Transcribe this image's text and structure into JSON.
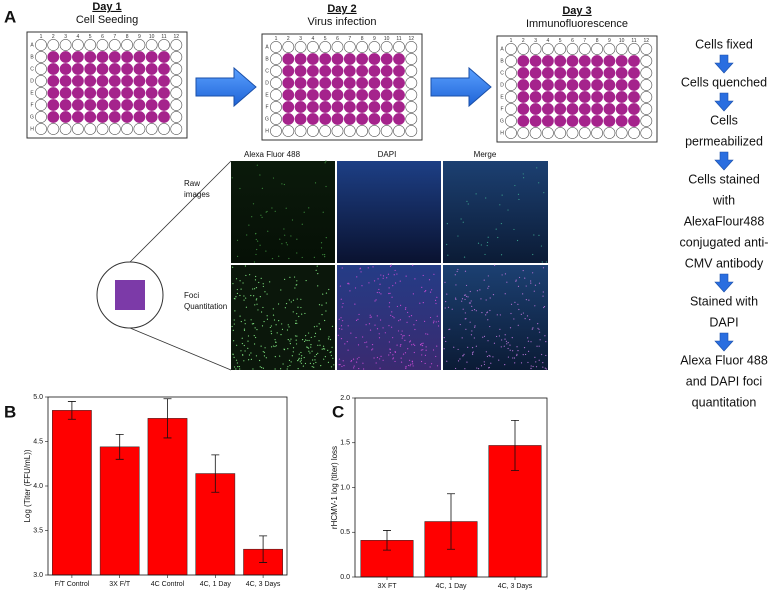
{
  "panel_labels": [
    "A",
    "B",
    "C"
  ],
  "plates": [
    {
      "day": "Day 1",
      "step": "Cell Seeding"
    },
    {
      "day": "Day 2",
      "step": "Virus infection"
    },
    {
      "day": "Day 3",
      "step": "Immunofluorescence"
    }
  ],
  "row_labels": [
    "A",
    "B",
    "C",
    "D",
    "E",
    "F",
    "G",
    "H"
  ],
  "col_labels": [
    1,
    2,
    3,
    4,
    5,
    6,
    7,
    8,
    9,
    10,
    11,
    12
  ],
  "image_columns": [
    "Alexa Fluor 488",
    "DAPI",
    "Merge"
  ],
  "image_rows": [
    [
      "Raw",
      "images"
    ],
    [
      "Foci",
      "Quantitation"
    ]
  ],
  "workflow_steps": [
    [
      "Cells fixed"
    ],
    [
      "Cells quenched"
    ],
    [
      "Cells",
      "permeabilized"
    ],
    [
      "Cells stained",
      "with",
      "AlexaFlour488",
      "conjugated anti-",
      "CMV antibody"
    ],
    [
      "Stained with",
      "DAPI"
    ],
    [
      "Alexa Fluor 488",
      "and DAPI foci",
      "quantitation"
    ]
  ],
  "chart_data": [
    {
      "type": "bar",
      "y_label": "Log (Titer (FFU/mL))",
      "categories": [
        "F/T Control",
        "3X F/T",
        "4C Control",
        "4C, 1 Day",
        "4C, 3 Days"
      ],
      "values": [
        4.85,
        4.44,
        4.76,
        4.14,
        3.29
      ],
      "errors": [
        0.1,
        0.14,
        0.22,
        0.21,
        0.15
      ],
      "color": "#ff0000",
      "ylim": [
        3.0,
        5.0
      ],
      "yticks": [
        {
          "value": 3,
          "label": "3.0"
        },
        3.5,
        {
          "value": 4,
          "label": "4.0"
        },
        4.5,
        {
          "value": 5,
          "label": "5.0"
        }
      ],
      "grid": false
    },
    {
      "type": "bar",
      "y_label": "rHCMV-1 log (titer) loss",
      "categories": [
        "3X FT",
        "4C, 1 Day",
        "4C, 3 Days"
      ],
      "values": [
        0.41,
        0.62,
        1.47
      ],
      "errors": [
        0.11,
        0.31,
        0.28
      ],
      "color": "#ff0000",
      "ylim": [
        0,
        2.0
      ],
      "yticks": [
        {
          "value": 0,
          "label": "0.0"
        },
        0.5,
        {
          "value": 1,
          "label": "1.0"
        },
        1.5,
        {
          "value": 2,
          "label": "2.0"
        }
      ],
      "grid": false
    }
  ]
}
